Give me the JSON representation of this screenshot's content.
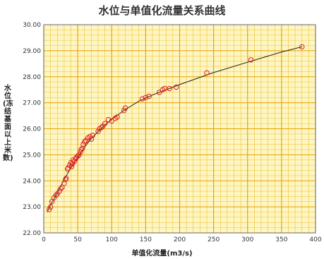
{
  "chart_data": {
    "type": "scatter",
    "title": "水位与单值化流量关系曲线",
    "xlabel": "单值化流量(m3/s)",
    "ylabel": "水位(冻结基面以上米数)",
    "xlim": [
      0,
      400
    ],
    "ylim": [
      22.0,
      30.0
    ],
    "x_ticks": [
      "0",
      "50",
      "100",
      "150",
      "200",
      "250",
      "300",
      "350",
      "400"
    ],
    "y_ticks": [
      "22.00",
      "23.00",
      "24.00",
      "25.00",
      "26.00",
      "27.00",
      "28.00",
      "29.00",
      "30.00"
    ],
    "grid": true,
    "legend": "none",
    "colors": {
      "background": "#fdf6c3",
      "major_grid": "#e8a000",
      "minor_grid": "#f0c030",
      "axis": "#666666",
      "points": "#e02020",
      "curve": "#333333"
    },
    "series": [
      {
        "marker": "circle",
        "points": [
          [
            8,
            22.9
          ],
          [
            10,
            23.0
          ],
          [
            12,
            23.2
          ],
          [
            15,
            23.35
          ],
          [
            18,
            23.45
          ],
          [
            20,
            23.5
          ],
          [
            23,
            23.6
          ],
          [
            25,
            23.7
          ],
          [
            27,
            23.75
          ],
          [
            30,
            23.9
          ],
          [
            32,
            24.05
          ],
          [
            33,
            24.1
          ],
          [
            35,
            24.45
          ],
          [
            36,
            24.5
          ],
          [
            38,
            24.6
          ],
          [
            40,
            24.7
          ],
          [
            41,
            24.55
          ],
          [
            42,
            24.65
          ],
          [
            43,
            24.8
          ],
          [
            45,
            24.75
          ],
          [
            47,
            24.85
          ],
          [
            48,
            24.9
          ],
          [
            50,
            24.95
          ],
          [
            52,
            25.0
          ],
          [
            54,
            25.1
          ],
          [
            55,
            25.2
          ],
          [
            57,
            25.25
          ],
          [
            58,
            25.4
          ],
          [
            60,
            25.5
          ],
          [
            62,
            25.55
          ],
          [
            65,
            25.65
          ],
          [
            68,
            25.7
          ],
          [
            70,
            25.6
          ],
          [
            72,
            25.75
          ],
          [
            80,
            25.9
          ],
          [
            82,
            26.0
          ],
          [
            85,
            26.05
          ],
          [
            87,
            26.1
          ],
          [
            90,
            26.2
          ],
          [
            95,
            26.35
          ],
          [
            100,
            26.3
          ],
          [
            105,
            26.4
          ],
          [
            108,
            26.45
          ],
          [
            118,
            26.7
          ],
          [
            120,
            26.8
          ],
          [
            145,
            27.15
          ],
          [
            150,
            27.2
          ],
          [
            155,
            27.25
          ],
          [
            170,
            27.4
          ],
          [
            175,
            27.5
          ],
          [
            178,
            27.55
          ],
          [
            185,
            27.55
          ],
          [
            195,
            27.6
          ],
          [
            240,
            28.15
          ],
          [
            305,
            28.65
          ],
          [
            380,
            29.15
          ]
        ]
      },
      {
        "line": "fit-curve",
        "points": [
          [
            5,
            22.8
          ],
          [
            10,
            23.08
          ],
          [
            20,
            23.55
          ],
          [
            30,
            24.05
          ],
          [
            40,
            24.5
          ],
          [
            50,
            24.9
          ],
          [
            60,
            25.3
          ],
          [
            70,
            25.62
          ],
          [
            80,
            25.9
          ],
          [
            90,
            26.14
          ],
          [
            100,
            26.36
          ],
          [
            120,
            26.74
          ],
          [
            140,
            27.06
          ],
          [
            160,
            27.3
          ],
          [
            180,
            27.5
          ],
          [
            200,
            27.7
          ],
          [
            250,
            28.16
          ],
          [
            300,
            28.56
          ],
          [
            350,
            28.95
          ],
          [
            380,
            29.15
          ]
        ]
      }
    ]
  }
}
